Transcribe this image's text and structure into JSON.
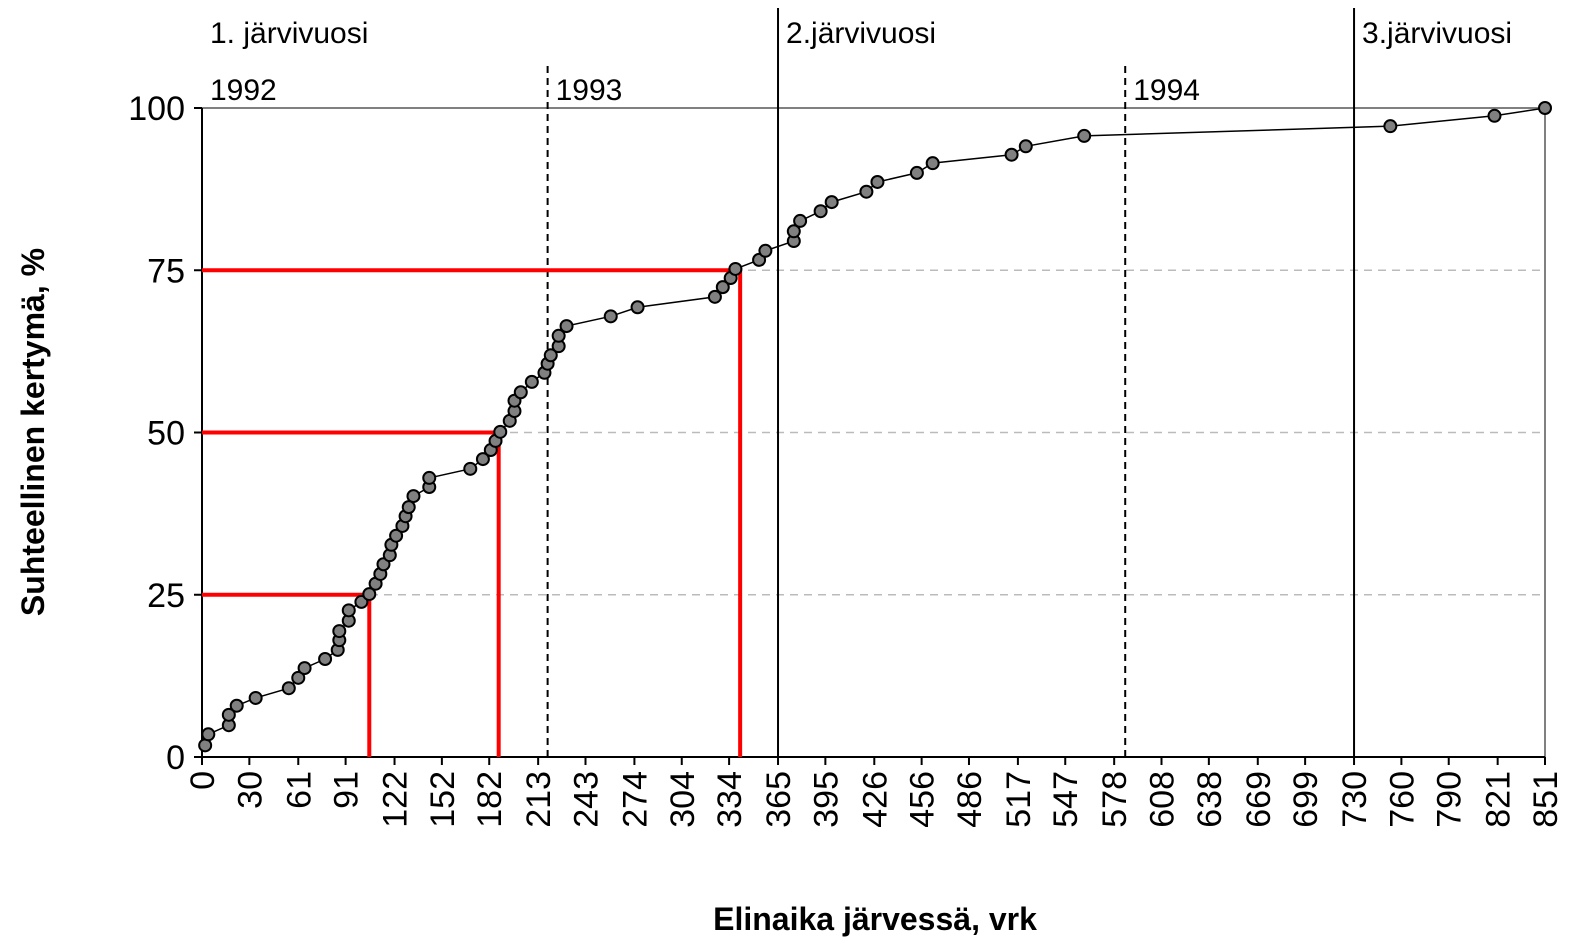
{
  "chart_data": {
    "type": "line",
    "x_label": "Elinaika järvessä, vrk",
    "y_label": "Suhteellinen kertymä, %",
    "series": [
      {
        "color": "#808080",
        "x": [
          2,
          4,
          17,
          17,
          22,
          34,
          55,
          61,
          65,
          78,
          86,
          87,
          87,
          93,
          93,
          101,
          106,
          110,
          113,
          115,
          119,
          120,
          123,
          127,
          129,
          131,
          134,
          144,
          144,
          170,
          178,
          183,
          186,
          189,
          195,
          198,
          198,
          202,
          209,
          217,
          219,
          221,
          226,
          226,
          231,
          259,
          276,
          325,
          330,
          335,
          338,
          353,
          357,
          375,
          375,
          379,
          392,
          399,
          421,
          428,
          453,
          463,
          513,
          522,
          559,
          753,
          819,
          851
        ],
        "values": [
          1.8,
          3.5,
          4.9,
          6.5,
          7.9,
          9.1,
          10.6,
          12.2,
          13.7,
          15.1,
          16.5,
          18.0,
          19.4,
          21.0,
          22.6,
          23.9,
          25.1,
          26.7,
          28.2,
          29.7,
          31.1,
          32.7,
          34.1,
          35.6,
          37.1,
          38.5,
          40.2,
          41.6,
          43.0,
          44.4,
          45.9,
          47.3,
          48.7,
          50.1,
          51.8,
          53.3,
          54.9,
          56.2,
          57.8,
          59.2,
          60.6,
          61.9,
          63.3,
          64.9,
          66.4,
          67.9,
          69.3,
          70.9,
          72.4,
          73.8,
          75.2,
          76.6,
          78.0,
          79.5,
          81.0,
          82.6,
          84.1,
          85.5,
          87.1,
          88.6,
          90.0,
          91.5,
          92.8,
          94.1,
          95.7,
          97.2,
          98.8,
          100
        ]
      }
    ],
    "quartiles": {
      "color": "#ff0000",
      "y": [
        25,
        50,
        75
      ],
      "x": [
        106,
        188,
        341
      ]
    },
    "lake_years": {
      "labels": [
        "1. järvivuosi",
        "2.järvivuosi",
        "3.järvivuosi"
      ],
      "boundaries": [
        365,
        730
      ]
    },
    "calendar_years": {
      "labels": [
        "1992",
        "1993",
        "1994"
      ],
      "boundaries": [
        219,
        585
      ]
    },
    "xlim": [
      0,
      851
    ],
    "ylim": [
      0,
      100
    ],
    "xticks": [
      0,
      30,
      61,
      91,
      122,
      152,
      182,
      213,
      243,
      274,
      304,
      334,
      365,
      395,
      426,
      456,
      486,
      517,
      547,
      578,
      608,
      638,
      669,
      699,
      730,
      760,
      790,
      821,
      851
    ],
    "yticks": [
      0,
      25,
      50,
      75,
      100
    ],
    "grid": true
  }
}
